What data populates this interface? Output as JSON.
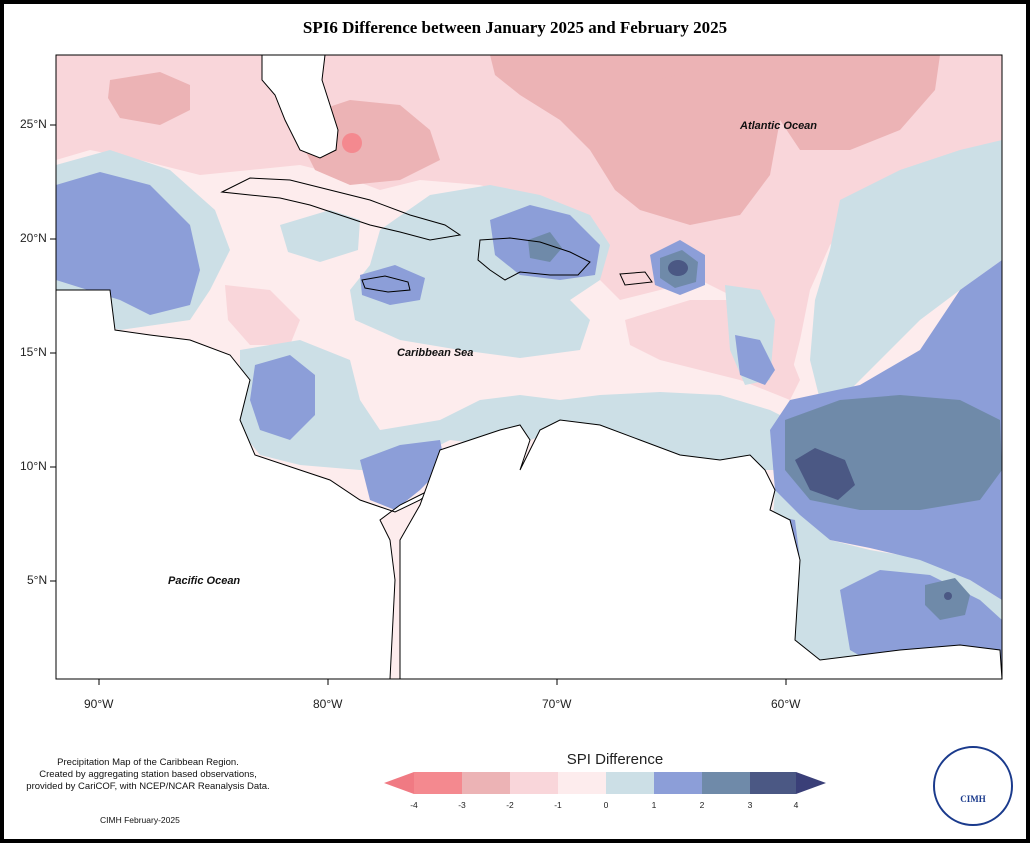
{
  "title": "SPI6 Difference between January 2025 and February 2025",
  "map": {
    "lat_ticks": [
      "25°N",
      "20°N",
      "15°N",
      "10°N",
      "5°N"
    ],
    "lon_ticks": [
      "90°W",
      "80°W",
      "70°W",
      "60°W"
    ],
    "labels": {
      "atlantic": "Atlantic Ocean",
      "caribbean": "Caribbean Sea",
      "pacific": "Pacific Ocean"
    }
  },
  "legend": {
    "title": "SPI Difference",
    "ticks": [
      "-4",
      "-3",
      "-2",
      "-1",
      "0",
      "1",
      "2",
      "3",
      "4"
    ],
    "colors": [
      "#f4898f",
      "#ecb3b5",
      "#f9d6da",
      "#fdeced",
      "#ccdfe6",
      "#8c9ed8",
      "#6f8aa9",
      "#4b5884"
    ],
    "end_low": "#f07a83",
    "end_high": "#3a3f78"
  },
  "footer": {
    "note_line1": "Precipitation Map of the Caribbean Region.",
    "note_line2": "Created by aggregating station based observations,",
    "note_line3": "provided by CariCOF, with NCEP/NCAR Reanalysis Data.",
    "credit": "CIMH February-2025",
    "logo_text": "CIMH"
  }
}
